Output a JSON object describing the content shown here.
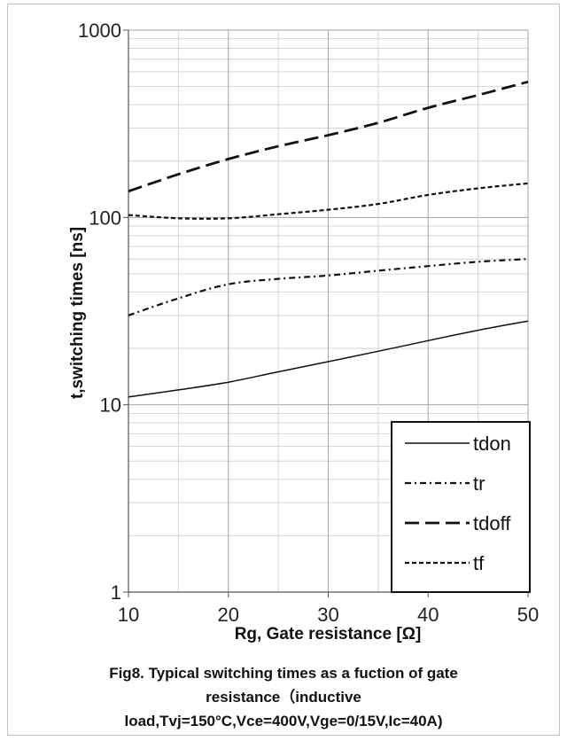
{
  "chart_data": {
    "type": "line",
    "xlabel": "Rg, Gate resistance [Ω]",
    "ylabel": "t,switching times [ns]",
    "xlim": [
      10,
      50
    ],
    "ylim": [
      1,
      1000
    ],
    "yscale": "log",
    "grid": true,
    "legend_position": "bottom-right",
    "x_ticks": [
      "10",
      "20",
      "30",
      "40",
      "50"
    ],
    "y_ticks": [
      "1",
      "10",
      "100",
      "1000"
    ],
    "caption": [
      "Fig8. Typical switching times as a fuction of gate",
      "resistance（inductive",
      "load,Tvj=150°C,Vce=400V,Vge=0/15V,Ic=40A)"
    ],
    "series": [
      {
        "name": "tdon",
        "style": "solid",
        "x": [
          10,
          15,
          20,
          25,
          30,
          35,
          40,
          45,
          50
        ],
        "y": [
          11,
          12,
          13.2,
          15,
          17,
          19.3,
          22,
          25,
          28
        ]
      },
      {
        "name": "tr",
        "style": "dashdot",
        "x": [
          10,
          15,
          20,
          25,
          30,
          35,
          40,
          45,
          50
        ],
        "y": [
          30,
          37,
          44,
          47,
          49,
          52,
          55,
          58,
          60
        ]
      },
      {
        "name": "tdoff",
        "style": "longdash",
        "x": [
          10,
          15,
          20,
          25,
          30,
          35,
          40,
          45,
          50
        ],
        "y": [
          138,
          170,
          205,
          240,
          275,
          320,
          385,
          450,
          530
        ]
      },
      {
        "name": "tf",
        "style": "shortdash",
        "x": [
          10,
          15,
          20,
          25,
          30,
          35,
          40,
          45,
          50
        ],
        "y": [
          103,
          99,
          99,
          104,
          110,
          118,
          132,
          143,
          152
        ]
      }
    ]
  }
}
